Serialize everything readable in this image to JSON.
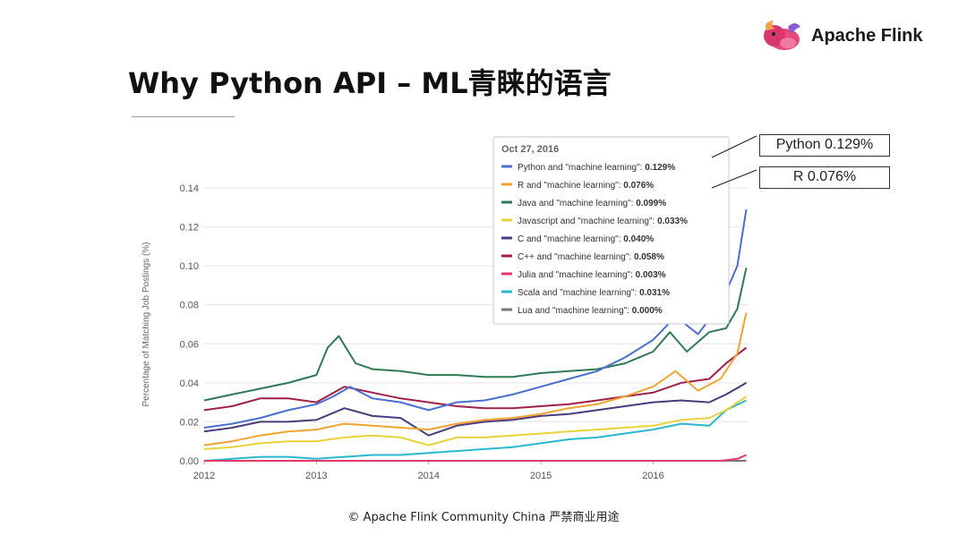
{
  "logo": {
    "text": "Apache Flink"
  },
  "title": "Why Python API – ML青睐的语言",
  "footer": "© Apache Flink Community China  严禁商业用途",
  "callouts": {
    "python": "Python 0.129%",
    "r": "R 0.076%"
  },
  "tooltip": {
    "date": "Oct 27, 2016",
    "rows": [
      {
        "label": "Python and \"machine learning\":",
        "value": "0.129%",
        "color": "#4a6fcf"
      },
      {
        "label": "R and \"machine learning\":",
        "value": "0.076%",
        "color": "#f0a330"
      },
      {
        "label": "Java and \"machine learning\":",
        "value": "0.099%",
        "color": "#2f7a55"
      },
      {
        "label": "Javascript and \"machine learning\":",
        "value": "0.033%",
        "color": "#e8d23a"
      },
      {
        "label": "C and \"machine learning\":",
        "value": "0.040%",
        "color": "#4b3a7c"
      },
      {
        "label": "C++ and \"machine learning\":",
        "value": "0.058%",
        "color": "#a0204a"
      },
      {
        "label": "Julia and \"machine learning\":",
        "value": "0.003%",
        "color": "#e03a6a"
      },
      {
        "label": "Scala and \"machine learning\":",
        "value": "0.031%",
        "color": "#2ab8cf"
      },
      {
        "label": "Lua and \"machine learning\":",
        "value": "0.000%",
        "color": "#777777"
      }
    ]
  },
  "chart_data": {
    "type": "line",
    "ylabel": "Percentage of Matching Job Postings (%)",
    "xlabel": "",
    "xlim": [
      2012,
      2016.85
    ],
    "ylim": [
      0,
      0.14
    ],
    "xticks": [
      "2012",
      "2013",
      "2014",
      "2015",
      "2016"
    ],
    "yticks": [
      "0.00",
      "0.02",
      "0.04",
      "0.06",
      "0.08",
      "0.10",
      "0.12",
      "0.14"
    ],
    "grid": true,
    "series": [
      {
        "name": "Python and \"machine learning\"",
        "color": "#4a6fcf",
        "x": [
          2012,
          2012.25,
          2012.5,
          2012.75,
          2013,
          2013.15,
          2013.3,
          2013.5,
          2013.75,
          2014,
          2014.25,
          2014.5,
          2014.75,
          2015,
          2015.25,
          2015.5,
          2015.75,
          2016,
          2016.2,
          2016.4,
          2016.6,
          2016.75,
          2016.83
        ],
        "y": [
          0.017,
          0.019,
          0.022,
          0.026,
          0.029,
          0.033,
          0.038,
          0.032,
          0.03,
          0.026,
          0.03,
          0.031,
          0.034,
          0.038,
          0.042,
          0.046,
          0.053,
          0.062,
          0.074,
          0.065,
          0.08,
          0.1,
          0.129
        ]
      },
      {
        "name": "R and \"machine learning\"",
        "color": "#f0a330",
        "x": [
          2012,
          2012.25,
          2012.5,
          2012.75,
          2013,
          2013.25,
          2013.5,
          2013.75,
          2014,
          2014.25,
          2014.5,
          2014.75,
          2015,
          2015.25,
          2015.5,
          2015.75,
          2016,
          2016.2,
          2016.4,
          2016.6,
          2016.75,
          2016.83
        ],
        "y": [
          0.008,
          0.01,
          0.013,
          0.015,
          0.016,
          0.019,
          0.018,
          0.017,
          0.016,
          0.019,
          0.021,
          0.022,
          0.024,
          0.027,
          0.029,
          0.033,
          0.038,
          0.046,
          0.036,
          0.042,
          0.055,
          0.076
        ]
      },
      {
        "name": "Java and \"machine learning\"",
        "color": "#2f7a55",
        "x": [
          2012,
          2012.25,
          2012.5,
          2012.75,
          2013,
          2013.1,
          2013.2,
          2013.35,
          2013.5,
          2013.75,
          2014,
          2014.25,
          2014.5,
          2014.75,
          2015,
          2015.25,
          2015.5,
          2015.75,
          2016,
          2016.15,
          2016.3,
          2016.5,
          2016.65,
          2016.75,
          2016.83
        ],
        "y": [
          0.031,
          0.034,
          0.037,
          0.04,
          0.044,
          0.058,
          0.064,
          0.05,
          0.047,
          0.046,
          0.044,
          0.044,
          0.043,
          0.043,
          0.045,
          0.046,
          0.047,
          0.05,
          0.056,
          0.066,
          0.056,
          0.066,
          0.068,
          0.078,
          0.099
        ]
      },
      {
        "name": "Javascript and \"machine learning\"",
        "color": "#e8d23a",
        "x": [
          2012,
          2012.25,
          2012.5,
          2012.75,
          2013,
          2013.25,
          2013.5,
          2013.75,
          2014,
          2014.25,
          2014.5,
          2014.75,
          2015,
          2015.25,
          2015.5,
          2015.75,
          2016,
          2016.25,
          2016.5,
          2016.65,
          2016.83
        ],
        "y": [
          0.006,
          0.007,
          0.009,
          0.01,
          0.01,
          0.012,
          0.013,
          0.012,
          0.008,
          0.012,
          0.012,
          0.013,
          0.014,
          0.015,
          0.016,
          0.017,
          0.018,
          0.021,
          0.022,
          0.026,
          0.033
        ]
      },
      {
        "name": "C and \"machine learning\"",
        "color": "#4b3a7c",
        "x": [
          2012,
          2012.25,
          2012.5,
          2012.75,
          2013,
          2013.25,
          2013.5,
          2013.75,
          2014,
          2014.25,
          2014.5,
          2014.75,
          2015,
          2015.25,
          2015.5,
          2015.75,
          2016,
          2016.25,
          2016.5,
          2016.65,
          2016.83
        ],
        "y": [
          0.015,
          0.017,
          0.02,
          0.02,
          0.021,
          0.027,
          0.023,
          0.022,
          0.013,
          0.018,
          0.02,
          0.021,
          0.023,
          0.024,
          0.026,
          0.028,
          0.03,
          0.031,
          0.03,
          0.034,
          0.04
        ]
      },
      {
        "name": "C++ and \"machine learning\"",
        "color": "#a0204a",
        "x": [
          2012,
          2012.25,
          2012.5,
          2012.75,
          2013,
          2013.25,
          2013.5,
          2013.75,
          2014,
          2014.25,
          2014.5,
          2014.75,
          2015,
          2015.25,
          2015.5,
          2015.75,
          2016,
          2016.25,
          2016.5,
          2016.65,
          2016.83
        ],
        "y": [
          0.026,
          0.028,
          0.032,
          0.032,
          0.03,
          0.038,
          0.035,
          0.032,
          0.03,
          0.028,
          0.027,
          0.027,
          0.028,
          0.029,
          0.031,
          0.033,
          0.035,
          0.04,
          0.042,
          0.05,
          0.058
        ]
      },
      {
        "name": "Julia and \"machine learning\"",
        "color": "#e03a6a",
        "x": [
          2012,
          2013,
          2014,
          2015,
          2016,
          2016.6,
          2016.75,
          2016.83
        ],
        "y": [
          0.0,
          0.0,
          0.0,
          0.0,
          0.0,
          0.0,
          0.001,
          0.003
        ]
      },
      {
        "name": "Scala and \"machine learning\"",
        "color": "#2ab8cf",
        "x": [
          2012,
          2012.25,
          2012.5,
          2012.75,
          2013,
          2013.25,
          2013.5,
          2013.75,
          2014,
          2014.25,
          2014.5,
          2014.75,
          2015,
          2015.25,
          2015.5,
          2015.75,
          2016,
          2016.25,
          2016.5,
          2016.65,
          2016.83
        ],
        "y": [
          0.0,
          0.001,
          0.002,
          0.002,
          0.001,
          0.002,
          0.003,
          0.003,
          0.004,
          0.005,
          0.006,
          0.007,
          0.009,
          0.011,
          0.012,
          0.014,
          0.016,
          0.019,
          0.018,
          0.026,
          0.031
        ]
      },
      {
        "name": "Lua and \"machine learning\"",
        "color": "#777777",
        "x": [
          2012,
          2016.83
        ],
        "y": [
          0.0,
          0.0
        ]
      }
    ]
  }
}
